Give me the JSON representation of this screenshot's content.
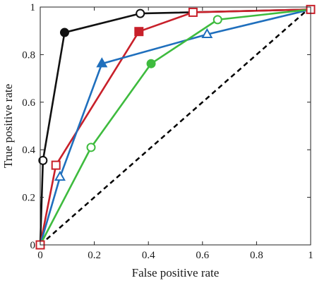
{
  "chart_data": {
    "type": "line",
    "xlabel": "False positive rate",
    "ylabel": "True positive rate",
    "xlim": [
      0,
      1
    ],
    "ylim": [
      0,
      1
    ],
    "xticks": [
      "0",
      "0.2",
      "0.4",
      "0.6",
      "0.8",
      "1"
    ],
    "yticks": [
      "0",
      "0.2",
      "0.4",
      "0.6",
      "0.8",
      "1"
    ],
    "grid": false,
    "legend": "none",
    "diagonal": {
      "style": "dashed",
      "color": "#000000",
      "points": [
        [
          0,
          0
        ],
        [
          1,
          1
        ]
      ]
    },
    "series": [
      {
        "color": "#111111",
        "points": [
          {
            "x": 0.0,
            "y": 0.0,
            "marker": "circle-open"
          },
          {
            "x": 0.01,
            "y": 0.355,
            "marker": "circle-open"
          },
          {
            "x": 0.09,
            "y": 0.893,
            "marker": "circle-filled"
          },
          {
            "x": 0.37,
            "y": 0.973,
            "marker": "circle-open"
          },
          {
            "x": 1.0,
            "y": 0.99,
            "marker": "none"
          }
        ]
      },
      {
        "color": "#c8202a",
        "points": [
          {
            "x": 0.0,
            "y": 0.0,
            "marker": "square-open"
          },
          {
            "x": 0.058,
            "y": 0.335,
            "marker": "square-open"
          },
          {
            "x": 0.365,
            "y": 0.897,
            "marker": "square-filled"
          },
          {
            "x": 0.565,
            "y": 0.978,
            "marker": "square-open"
          },
          {
            "x": 1.0,
            "y": 0.99,
            "marker": "square-open"
          }
        ]
      },
      {
        "color": "#1f6fbd",
        "points": [
          {
            "x": 0.0,
            "y": 0.0,
            "marker": "none"
          },
          {
            "x": 0.073,
            "y": 0.285,
            "marker": "triangle-open"
          },
          {
            "x": 0.228,
            "y": 0.762,
            "marker": "triangle-filled"
          },
          {
            "x": 0.617,
            "y": 0.885,
            "marker": "triangle-open"
          },
          {
            "x": 1.0,
            "y": 0.99,
            "marker": "none"
          }
        ]
      },
      {
        "color": "#3ebb3e",
        "points": [
          {
            "x": 0.0,
            "y": 0.0,
            "marker": "none"
          },
          {
            "x": 0.188,
            "y": 0.41,
            "marker": "circle-open"
          },
          {
            "x": 0.41,
            "y": 0.762,
            "marker": "circle-filled"
          },
          {
            "x": 0.656,
            "y": 0.947,
            "marker": "circle-open"
          },
          {
            "x": 1.0,
            "y": 0.99,
            "marker": "none"
          }
        ]
      }
    ]
  }
}
